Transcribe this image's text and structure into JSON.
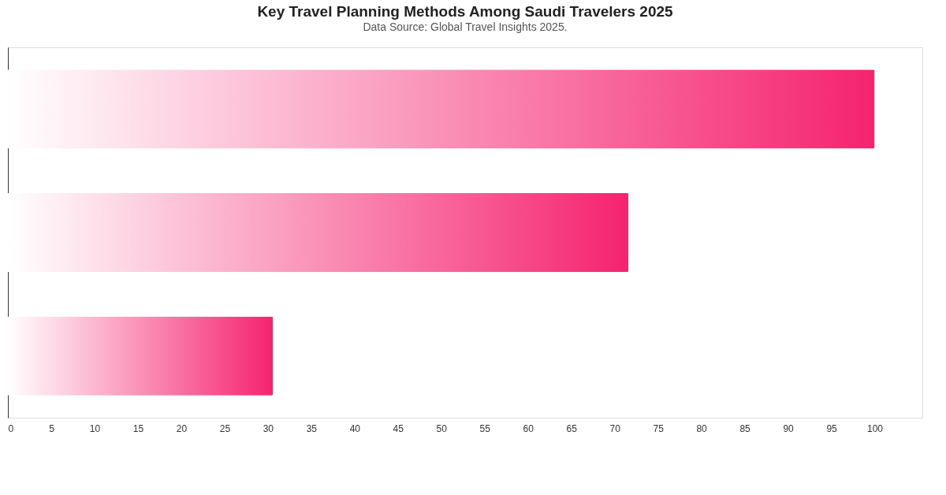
{
  "chart_data": {
    "type": "bar",
    "orientation": "horizontal",
    "title": "Key Travel Planning Methods Among Saudi Travelers 2025",
    "subtitle": "Data Source: Global Travel Insights 2025.",
    "categories": [
      null,
      null,
      null
    ],
    "values": [
      100,
      71.6,
      30.6
    ],
    "color": "#f5236f",
    "xlim": [
      0,
      105.5
    ],
    "xticks": [
      0,
      5,
      10,
      15,
      20,
      25,
      30,
      35,
      40,
      45,
      50,
      55,
      60,
      65,
      70,
      75,
      80,
      85,
      90,
      95,
      100
    ],
    "grid": false
  }
}
